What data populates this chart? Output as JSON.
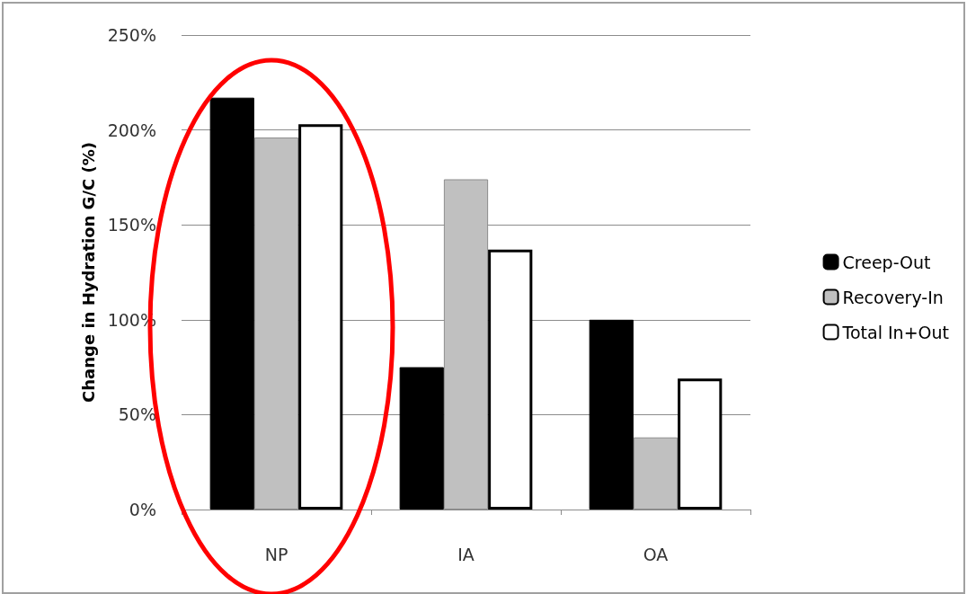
{
  "chart_data": {
    "type": "bar",
    "ylabel": "Change in Hydration G/C (%)",
    "categories": [
      "NP",
      "IA",
      "OA"
    ],
    "series": [
      {
        "name": "Creep-Out",
        "color": "#000000",
        "values": [
          217,
          75,
          100
        ]
      },
      {
        "name": "Recovery-In",
        "color": "#c0c0c0",
        "values": [
          196,
          174,
          38
        ]
      },
      {
        "name": "Total In+Out",
        "color": "#ffffff",
        "values": [
          203,
          137,
          69
        ]
      }
    ],
    "ylim": [
      0,
      250
    ],
    "yticks": [
      {
        "value": 0,
        "label": "0%"
      },
      {
        "value": 50,
        "label": "50%"
      },
      {
        "value": 100,
        "label": "100%"
      },
      {
        "value": 150,
        "label": "150%"
      },
      {
        "value": 200,
        "label": "200%"
      },
      {
        "value": 250,
        "label": "250%"
      }
    ],
    "grid": "y",
    "legend": "right"
  }
}
